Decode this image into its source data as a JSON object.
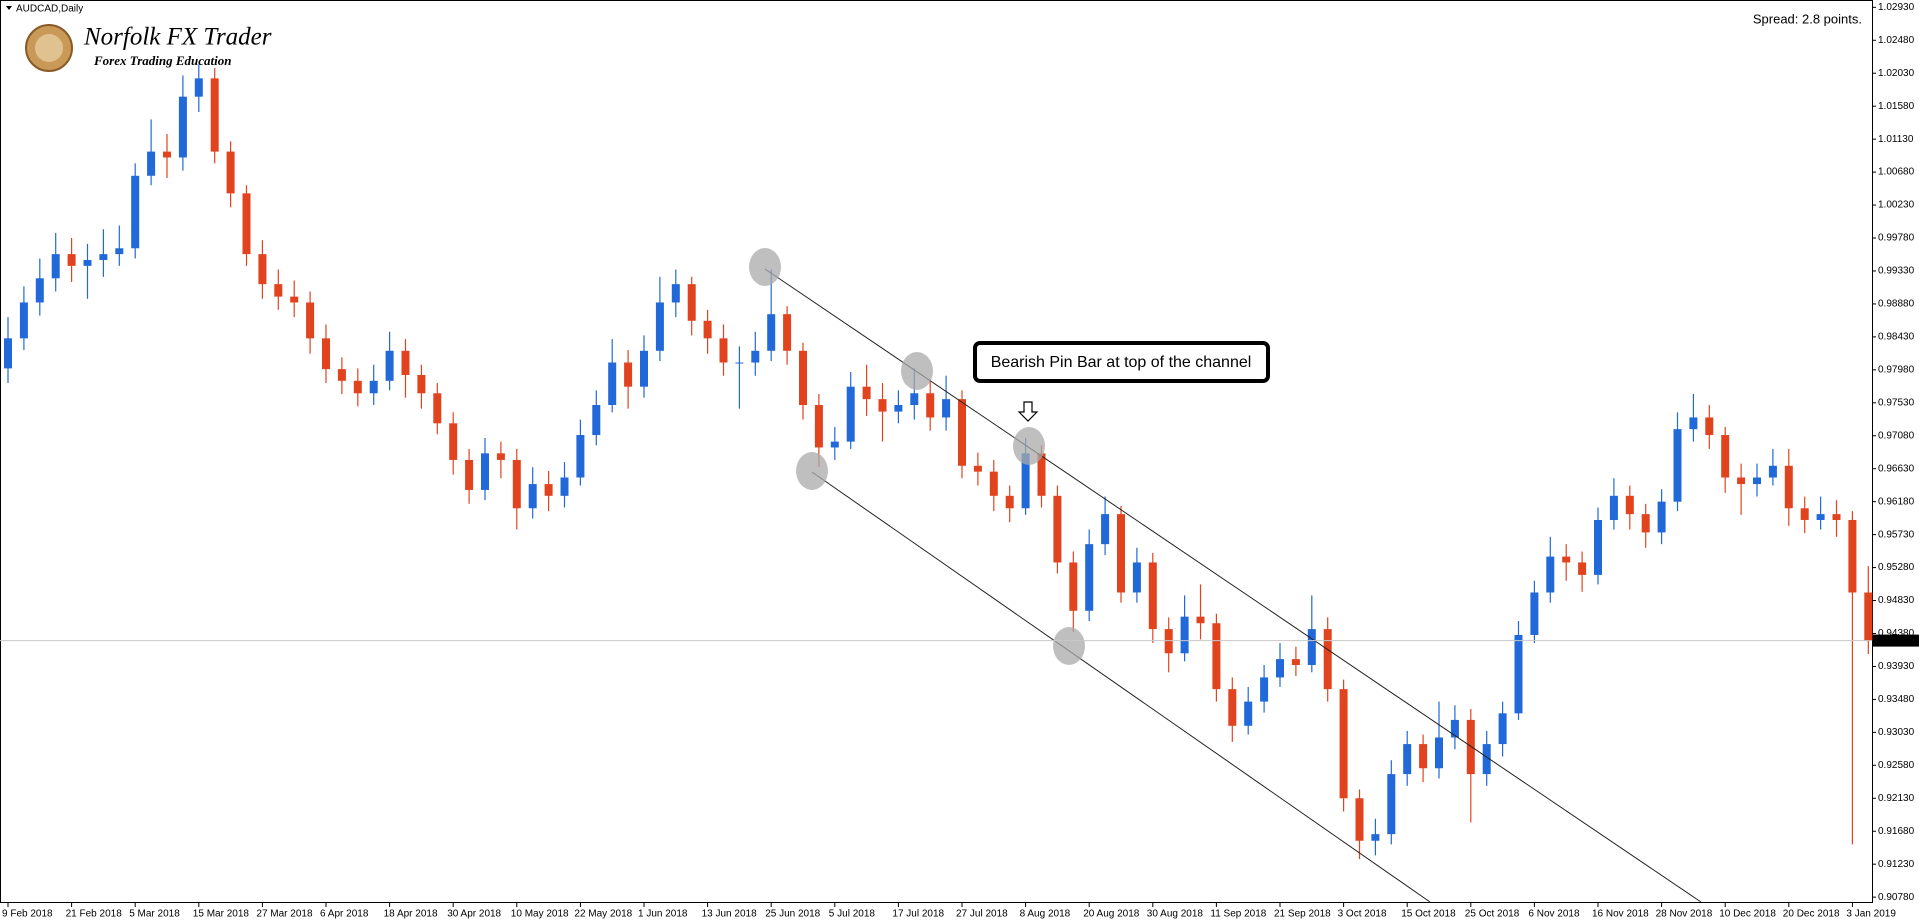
{
  "chart_data": {
    "type": "candlestick",
    "title": "AUDCAD,Daily",
    "logo": {
      "title": "Norfolk FX Trader",
      "subtitle": "Forex Trading Education"
    },
    "spread": "Spread: 2.8 points.",
    "annotation": "Bearish Pin Bar at top of the channel",
    "up_color": "#2168d8",
    "down_color": "#e2431f",
    "grid": false,
    "last_price": 0.94283,
    "ylim": [
      0.907,
      1.0303
    ],
    "yticks": [
      {
        "value": 1.0293,
        "label": "1.02930"
      },
      {
        "value": 1.0248,
        "label": "1.02480"
      },
      {
        "value": 1.0203,
        "label": "1.02030"
      },
      {
        "value": 1.0158,
        "label": "1.01580"
      },
      {
        "value": 1.0113,
        "label": "1.01130"
      },
      {
        "value": 1.0068,
        "label": "1.00680"
      },
      {
        "value": 1.0023,
        "label": "1.00230"
      },
      {
        "value": 0.9978,
        "label": "0.99780"
      },
      {
        "value": 0.9933,
        "label": "0.99330"
      },
      {
        "value": 0.9888,
        "label": "0.98880"
      },
      {
        "value": 0.9843,
        "label": "0.98430"
      },
      {
        "value": 0.9798,
        "label": "0.97980"
      },
      {
        "value": 0.9753,
        "label": "0.97530"
      },
      {
        "value": 0.9708,
        "label": "0.97080"
      },
      {
        "value": 0.9663,
        "label": "0.96630"
      },
      {
        "value": 0.9618,
        "label": "0.96180"
      },
      {
        "value": 0.9573,
        "label": "0.95730"
      },
      {
        "value": 0.9528,
        "label": "0.95280"
      },
      {
        "value": 0.9483,
        "label": "0.94830"
      },
      {
        "value": 0.9438,
        "label": "0.94380"
      },
      {
        "value": 0.9393,
        "label": "0.93930"
      },
      {
        "value": 0.9348,
        "label": "0.93480"
      },
      {
        "value": 0.9303,
        "label": "0.93030"
      },
      {
        "value": 0.9258,
        "label": "0.92580"
      },
      {
        "value": 0.9213,
        "label": "0.92130"
      },
      {
        "value": 0.9168,
        "label": "0.91680"
      },
      {
        "value": 0.9123,
        "label": "0.91230"
      },
      {
        "value": 0.9078,
        "label": "0.90780"
      }
    ],
    "candles": [
      {
        "label": "9 Feb 2018",
        "o": 0.98,
        "h": 0.987,
        "l": 0.978,
        "c": 0.9841
      },
      {
        "o": 0.9841,
        "h": 0.9912,
        "l": 0.9825,
        "c": 0.989
      },
      {
        "o": 0.989,
        "h": 0.995,
        "l": 0.9872,
        "c": 0.9923
      },
      {
        "o": 0.9923,
        "h": 0.9985,
        "l": 0.9905,
        "c": 0.9956
      },
      {
        "label": "21 Feb 2018",
        "o": 0.9956,
        "h": 0.9978,
        "l": 0.9918,
        "c": 0.994
      },
      {
        "o": 0.994,
        "h": 0.997,
        "l": 0.9895,
        "c": 0.9948
      },
      {
        "o": 0.9948,
        "h": 0.999,
        "l": 0.9925,
        "c": 0.9956
      },
      {
        "o": 0.9956,
        "h": 0.9995,
        "l": 0.994,
        "c": 0.9964
      },
      {
        "label": "5 Mar 2018",
        "o": 0.9964,
        "h": 1.008,
        "l": 0.995,
        "c": 1.0063
      },
      {
        "o": 1.0063,
        "h": 1.014,
        "l": 1.005,
        "c": 1.0096
      },
      {
        "o": 1.0096,
        "h": 1.012,
        "l": 1.006,
        "c": 1.0088
      },
      {
        "o": 1.0088,
        "h": 1.02,
        "l": 1.007,
        "c": 1.0171
      },
      {
        "label": "15 Mar 2018",
        "o": 1.0171,
        "h": 1.0215,
        "l": 1.015,
        "c": 1.0196
      },
      {
        "o": 1.0196,
        "h": 1.021,
        "l": 1.008,
        "c": 1.0096
      },
      {
        "o": 1.0096,
        "h": 1.011,
        "l": 1.002,
        "c": 1.0039
      },
      {
        "o": 1.0039,
        "h": 1.005,
        "l": 0.994,
        "c": 0.9956
      },
      {
        "label": "27 Mar 2018",
        "o": 0.9956,
        "h": 0.9975,
        "l": 0.9895,
        "c": 0.9915
      },
      {
        "o": 0.9915,
        "h": 0.9935,
        "l": 0.988,
        "c": 0.9898
      },
      {
        "o": 0.9898,
        "h": 0.992,
        "l": 0.987,
        "c": 0.989
      },
      {
        "o": 0.989,
        "h": 0.9905,
        "l": 0.982,
        "c": 0.9841
      },
      {
        "label": "6 Apr 2018",
        "o": 0.9841,
        "h": 0.986,
        "l": 0.978,
        "c": 0.9799
      },
      {
        "o": 0.9799,
        "h": 0.9815,
        "l": 0.9765,
        "c": 0.9783
      },
      {
        "o": 0.9783,
        "h": 0.98,
        "l": 0.9748,
        "c": 0.9766
      },
      {
        "o": 0.9766,
        "h": 0.9805,
        "l": 0.975,
        "c": 0.9783
      },
      {
        "label": "18 Apr 2018",
        "o": 0.9783,
        "h": 0.985,
        "l": 0.977,
        "c": 0.9824
      },
      {
        "o": 0.9824,
        "h": 0.984,
        "l": 0.976,
        "c": 0.9791
      },
      {
        "o": 0.9791,
        "h": 0.9805,
        "l": 0.9745,
        "c": 0.9766
      },
      {
        "o": 0.9766,
        "h": 0.978,
        "l": 0.971,
        "c": 0.9725
      },
      {
        "label": "30 Apr 2018",
        "o": 0.9725,
        "h": 0.974,
        "l": 0.9655,
        "c": 0.9675
      },
      {
        "o": 0.9675,
        "h": 0.969,
        "l": 0.9615,
        "c": 0.9634
      },
      {
        "o": 0.9634,
        "h": 0.9705,
        "l": 0.962,
        "c": 0.9684
      },
      {
        "o": 0.9684,
        "h": 0.97,
        "l": 0.965,
        "c": 0.9675
      },
      {
        "label": "10 May 2018",
        "o": 0.9675,
        "h": 0.969,
        "l": 0.958,
        "c": 0.9609
      },
      {
        "o": 0.9609,
        "h": 0.9665,
        "l": 0.9595,
        "c": 0.9642
      },
      {
        "o": 0.9642,
        "h": 0.966,
        "l": 0.9605,
        "c": 0.9626
      },
      {
        "o": 0.9626,
        "h": 0.9672,
        "l": 0.961,
        "c": 0.9651
      },
      {
        "label": "22 May 2018",
        "o": 0.9651,
        "h": 0.973,
        "l": 0.964,
        "c": 0.9709
      },
      {
        "o": 0.9709,
        "h": 0.977,
        "l": 0.9695,
        "c": 0.975
      },
      {
        "o": 0.975,
        "h": 0.984,
        "l": 0.974,
        "c": 0.9808
      },
      {
        "o": 0.9808,
        "h": 0.9825,
        "l": 0.9745,
        "c": 0.9775
      },
      {
        "label": "1 Jun 2018",
        "o": 0.9775,
        "h": 0.9845,
        "l": 0.976,
        "c": 0.9824
      },
      {
        "o": 0.9824,
        "h": 0.9925,
        "l": 0.981,
        "c": 0.989
      },
      {
        "o": 0.989,
        "h": 0.9935,
        "l": 0.987,
        "c": 0.9915
      },
      {
        "o": 0.9915,
        "h": 0.9925,
        "l": 0.9845,
        "c": 0.9865
      },
      {
        "label": "13 Jun 2018",
        "o": 0.9865,
        "h": 0.988,
        "l": 0.982,
        "c": 0.9841
      },
      {
        "o": 0.9841,
        "h": 0.986,
        "l": 0.979,
        "c": 0.9808
      },
      {
        "o": 0.9808,
        "h": 0.983,
        "l": 0.9745,
        "c": 0.9808
      },
      {
        "o": 0.9808,
        "h": 0.985,
        "l": 0.979,
        "c": 0.9824
      },
      {
        "label": "25 Jun 2018",
        "o": 0.9824,
        "h": 0.9935,
        "l": 0.981,
        "c": 0.9874
      },
      {
        "o": 0.9874,
        "h": 0.9885,
        "l": 0.9805,
        "c": 0.9824
      },
      {
        "o": 0.9824,
        "h": 0.9835,
        "l": 0.973,
        "c": 0.975
      },
      {
        "o": 0.975,
        "h": 0.9765,
        "l": 0.9665,
        "c": 0.9692
      },
      {
        "label": "5 Jul 2018",
        "o": 0.9692,
        "h": 0.972,
        "l": 0.9675,
        "c": 0.97
      },
      {
        "o": 0.97,
        "h": 0.9795,
        "l": 0.969,
        "c": 0.9775
      },
      {
        "o": 0.9775,
        "h": 0.9805,
        "l": 0.9735,
        "c": 0.9758
      },
      {
        "o": 0.9758,
        "h": 0.978,
        "l": 0.97,
        "c": 0.9741
      },
      {
        "label": "17 Jul 2018",
        "o": 0.9741,
        "h": 0.977,
        "l": 0.9725,
        "c": 0.975
      },
      {
        "o": 0.975,
        "h": 0.98,
        "l": 0.973,
        "c": 0.9766
      },
      {
        "o": 0.9766,
        "h": 0.9785,
        "l": 0.9715,
        "c": 0.9733
      },
      {
        "o": 0.9733,
        "h": 0.979,
        "l": 0.9715,
        "c": 0.9758
      },
      {
        "label": "27 Jul 2018",
        "o": 0.9758,
        "h": 0.977,
        "l": 0.965,
        "c": 0.9667
      },
      {
        "o": 0.9667,
        "h": 0.9685,
        "l": 0.964,
        "c": 0.9659
      },
      {
        "o": 0.9659,
        "h": 0.9675,
        "l": 0.9605,
        "c": 0.9626
      },
      {
        "o": 0.9626,
        "h": 0.964,
        "l": 0.959,
        "c": 0.9609
      },
      {
        "label": "8 Aug 2018",
        "o": 0.9609,
        "h": 0.9705,
        "l": 0.96,
        "c": 0.9684
      },
      {
        "o": 0.9684,
        "h": 0.9695,
        "l": 0.961,
        "c": 0.9626
      },
      {
        "o": 0.9626,
        "h": 0.964,
        "l": 0.952,
        "c": 0.9535
      },
      {
        "o": 0.9535,
        "h": 0.955,
        "l": 0.944,
        "c": 0.9469
      },
      {
        "label": "20 Aug 2018",
        "o": 0.9469,
        "h": 0.958,
        "l": 0.9455,
        "c": 0.956
      },
      {
        "o": 0.956,
        "h": 0.9625,
        "l": 0.9545,
        "c": 0.9601
      },
      {
        "o": 0.9601,
        "h": 0.9612,
        "l": 0.948,
        "c": 0.9494
      },
      {
        "o": 0.9494,
        "h": 0.9555,
        "l": 0.948,
        "c": 0.9535
      },
      {
        "label": "30 Aug 2018",
        "o": 0.9535,
        "h": 0.9548,
        "l": 0.9425,
        "c": 0.9444
      },
      {
        "o": 0.9444,
        "h": 0.946,
        "l": 0.9385,
        "c": 0.9411
      },
      {
        "o": 0.9411,
        "h": 0.949,
        "l": 0.94,
        "c": 0.9461
      },
      {
        "o": 0.9461,
        "h": 0.9505,
        "l": 0.943,
        "c": 0.9452
      },
      {
        "label": "11 Sep 2018",
        "o": 0.9452,
        "h": 0.9465,
        "l": 0.9345,
        "c": 0.9362
      },
      {
        "o": 0.9362,
        "h": 0.9378,
        "l": 0.929,
        "c": 0.9312
      },
      {
        "o": 0.9312,
        "h": 0.9365,
        "l": 0.93,
        "c": 0.9345
      },
      {
        "o": 0.9345,
        "h": 0.9395,
        "l": 0.933,
        "c": 0.9378
      },
      {
        "label": "21 Sep 2018",
        "o": 0.9378,
        "h": 0.9425,
        "l": 0.9365,
        "c": 0.9403
      },
      {
        "o": 0.9403,
        "h": 0.942,
        "l": 0.938,
        "c": 0.9395
      },
      {
        "o": 0.9395,
        "h": 0.949,
        "l": 0.9385,
        "c": 0.9444
      },
      {
        "o": 0.9444,
        "h": 0.946,
        "l": 0.9345,
        "c": 0.9362
      },
      {
        "label": "3 Oct 2018",
        "o": 0.9362,
        "h": 0.9375,
        "l": 0.9195,
        "c": 0.9213
      },
      {
        "o": 0.9213,
        "h": 0.9225,
        "l": 0.913,
        "c": 0.9155
      },
      {
        "o": 0.9155,
        "h": 0.9185,
        "l": 0.9135,
        "c": 0.9164
      },
      {
        "o": 0.9164,
        "h": 0.9265,
        "l": 0.915,
        "c": 0.9246
      },
      {
        "label": "15 Oct 2018",
        "o": 0.9246,
        "h": 0.9305,
        "l": 0.923,
        "c": 0.9287
      },
      {
        "o": 0.9287,
        "h": 0.93,
        "l": 0.9235,
        "c": 0.9254
      },
      {
        "o": 0.9254,
        "h": 0.9345,
        "l": 0.924,
        "c": 0.9296
      },
      {
        "o": 0.9296,
        "h": 0.934,
        "l": 0.928,
        "c": 0.932
      },
      {
        "label": "25 Oct 2018",
        "o": 0.932,
        "h": 0.9335,
        "l": 0.918,
        "c": 0.9246
      },
      {
        "o": 0.9246,
        "h": 0.9305,
        "l": 0.923,
        "c": 0.9287
      },
      {
        "o": 0.9287,
        "h": 0.9345,
        "l": 0.927,
        "c": 0.9329
      },
      {
        "o": 0.9329,
        "h": 0.9455,
        "l": 0.932,
        "c": 0.9436
      },
      {
        "label": "6 Nov 2018",
        "o": 0.9436,
        "h": 0.951,
        "l": 0.9425,
        "c": 0.9494
      },
      {
        "o": 0.9494,
        "h": 0.957,
        "l": 0.948,
        "c": 0.9543
      },
      {
        "o": 0.9543,
        "h": 0.956,
        "l": 0.951,
        "c": 0.9535
      },
      {
        "o": 0.9535,
        "h": 0.955,
        "l": 0.9495,
        "c": 0.9518
      },
      {
        "label": "16 Nov 2018",
        "o": 0.9518,
        "h": 0.961,
        "l": 0.9505,
        "c": 0.9593
      },
      {
        "o": 0.9593,
        "h": 0.965,
        "l": 0.958,
        "c": 0.9626
      },
      {
        "o": 0.9626,
        "h": 0.964,
        "l": 0.958,
        "c": 0.9601
      },
      {
        "o": 0.9601,
        "h": 0.9615,
        "l": 0.9555,
        "c": 0.9576
      },
      {
        "label": "28 Nov 2018",
        "o": 0.9576,
        "h": 0.9635,
        "l": 0.956,
        "c": 0.9618
      },
      {
        "o": 0.9618,
        "h": 0.974,
        "l": 0.9605,
        "c": 0.9717
      },
      {
        "o": 0.9717,
        "h": 0.9765,
        "l": 0.97,
        "c": 0.9733
      },
      {
        "o": 0.9733,
        "h": 0.975,
        "l": 0.969,
        "c": 0.9709
      },
      {
        "label": "10 Dec 2018",
        "o": 0.9709,
        "h": 0.972,
        "l": 0.963,
        "c": 0.9651
      },
      {
        "o": 0.9651,
        "h": 0.967,
        "l": 0.96,
        "c": 0.9642
      },
      {
        "o": 0.9642,
        "h": 0.967,
        "l": 0.9625,
        "c": 0.9651
      },
      {
        "o": 0.9651,
        "h": 0.969,
        "l": 0.964,
        "c": 0.9667
      },
      {
        "label": "20 Dec 2018",
        "o": 0.9667,
        "h": 0.969,
        "l": 0.9585,
        "c": 0.9609
      },
      {
        "o": 0.9609,
        "h": 0.9625,
        "l": 0.9575,
        "c": 0.9593
      },
      {
        "o": 0.9593,
        "h": 0.9625,
        "l": 0.958,
        "c": 0.9601
      },
      {
        "o": 0.9601,
        "h": 0.962,
        "l": 0.957,
        "c": 0.9593
      },
      {
        "label": "3 Jan 2019",
        "o": 0.9593,
        "h": 0.9605,
        "l": 0.915,
        "c": 0.9494
      },
      {
        "o": 0.9494,
        "h": 0.953,
        "l": 0.941,
        "c": 0.9428
      }
    ]
  }
}
